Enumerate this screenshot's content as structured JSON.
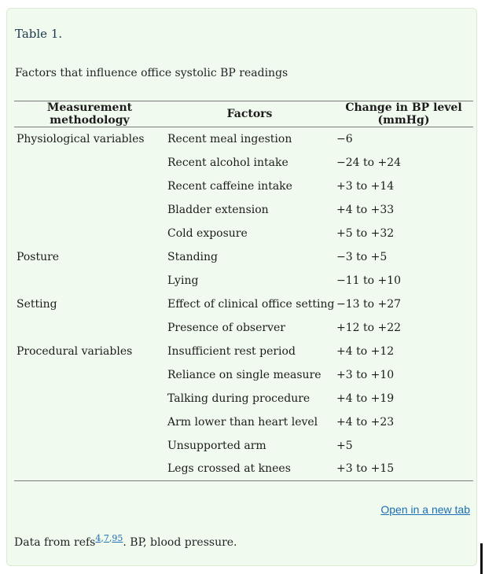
{
  "page": {
    "title": "Table 1.",
    "caption": "Factors that influence office systolic BP readings",
    "open_in_new_tab": "Open in a new tab",
    "footnote": {
      "prefix": "Data from refs",
      "refs": [
        "4",
        "7",
        "95"
      ],
      "suffix": ". BP, blood pressure."
    }
  },
  "colors": {
    "panel_bg": "#f1faee",
    "panel_border": "#dcead2",
    "link_blue": "#1b6fb5",
    "rule_gray": "#7a7a7a",
    "title_color": "#1b3a4d",
    "text_color": "#1c1c1c"
  },
  "chart_data": {
    "type": "table",
    "title": "Factors that influence office systolic BP readings",
    "columns": [
      "Measurement methodology",
      "Factors",
      "Change in BP level (mmHg)"
    ],
    "rows": [
      {
        "group": "Physiological variables",
        "factor": "Recent meal ingestion",
        "change": "−6"
      },
      {
        "group": "",
        "factor": "Recent alcohol intake",
        "change": "−24 to +24"
      },
      {
        "group": "",
        "factor": "Recent caffeine intake",
        "change": "+3 to +14"
      },
      {
        "group": "",
        "factor": "Bladder extension",
        "change": "+4 to +33"
      },
      {
        "group": "",
        "factor": "Cold exposure",
        "change": "+5 to +32"
      },
      {
        "group": "Posture",
        "factor": "Standing",
        "change": "−3 to +5"
      },
      {
        "group": "",
        "factor": "Lying",
        "change": "−11 to +10"
      },
      {
        "group": "Setting",
        "factor": "Effect of clinical office setting",
        "change": "−13 to +27"
      },
      {
        "group": "",
        "factor": "Presence of observer",
        "change": "+12 to +22"
      },
      {
        "group": "Procedural variables",
        "factor": "Insufficient rest period",
        "change": "+4 to +12"
      },
      {
        "group": "",
        "factor": "Reliance on single measure",
        "change": "+3 to +10"
      },
      {
        "group": "",
        "factor": "Talking during procedure",
        "change": "+4 to +19"
      },
      {
        "group": "",
        "factor": "Arm lower than heart level",
        "change": "+4 to +23"
      },
      {
        "group": "",
        "factor": "Unsupported arm",
        "change": "+5"
      },
      {
        "group": "",
        "factor": "Legs crossed at knees",
        "change": "+3 to +15"
      }
    ]
  }
}
